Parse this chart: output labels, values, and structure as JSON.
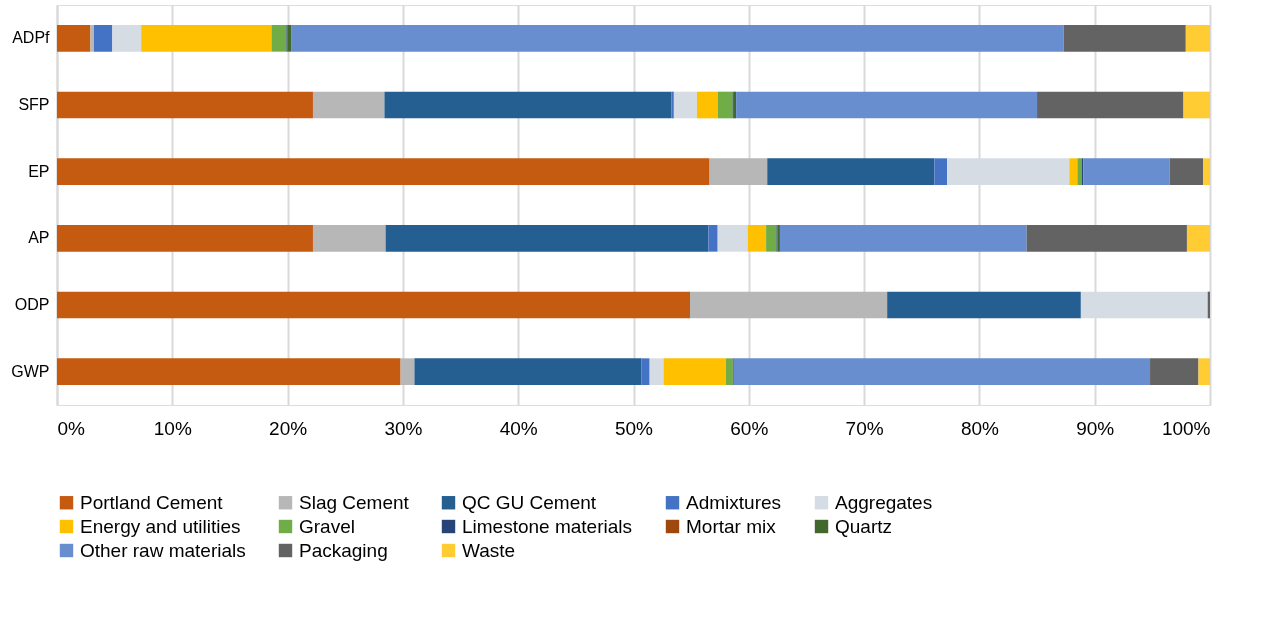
{
  "chart_data": {
    "type": "bar",
    "orientation": "horizontal",
    "stacked": true,
    "legend": "bottom",
    "grid": "x",
    "categories": [
      "ADPf",
      "SFP",
      "EP",
      "AP",
      "ODP",
      "GWP"
    ],
    "xlim": [
      0,
      100
    ],
    "xticks": [
      {
        "value": 0,
        "label": "0%"
      },
      {
        "value": 10,
        "label": "10%"
      },
      {
        "value": 20,
        "label": "20%"
      },
      {
        "value": 30,
        "label": "30%"
      },
      {
        "value": 40,
        "label": "40%"
      },
      {
        "value": 50,
        "label": "50%"
      },
      {
        "value": 60,
        "label": "60%"
      },
      {
        "value": 70,
        "label": "70%"
      },
      {
        "value": 80,
        "label": "80%"
      },
      {
        "value": 90,
        "label": "90%"
      },
      {
        "value": 100,
        "label": "100%"
      }
    ],
    "series": [
      {
        "name": "Portland Cement",
        "color": "#c55a11",
        "values": [
          2.9,
          22.2,
          56.6,
          22.2,
          54.9,
          29.8
        ]
      },
      {
        "name": "Slag Cement",
        "color": "#b7b7b7",
        "values": [
          0.3,
          6.2,
          5.0,
          6.3,
          17.1,
          1.2
        ]
      },
      {
        "name": "QC GU Cement",
        "color": "#255e91",
        "values": [
          0,
          24.9,
          14.5,
          28.0,
          16.8,
          19.7
        ]
      },
      {
        "name": "Admixtures",
        "color": "#4472c4",
        "values": [
          1.6,
          0.2,
          1.1,
          0.8,
          0,
          0.7
        ]
      },
      {
        "name": "Aggregates",
        "color": "#d6dce4",
        "values": [
          2.5,
          2.0,
          10.6,
          2.6,
          11.0,
          1.2
        ]
      },
      {
        "name": "Energy and utilities",
        "color": "#ffc000",
        "values": [
          11.3,
          1.8,
          0.7,
          1.6,
          0,
          5.4
        ]
      },
      {
        "name": "Gravel",
        "color": "#70ad47",
        "values": [
          1.3,
          1.3,
          0.4,
          0.9,
          0,
          0.6
        ]
      },
      {
        "name": "Limestone materials",
        "color": "#264478",
        "values": [
          0.1,
          0.1,
          0.1,
          0.1,
          0,
          0
        ]
      },
      {
        "name": "Mortar mix",
        "color": "#9e480e",
        "values": [
          0,
          0,
          0,
          0,
          0,
          0
        ]
      },
      {
        "name": "Quartz",
        "color": "#43682b",
        "values": [
          0.3,
          0.2,
          0,
          0.2,
          0,
          0.1
        ]
      },
      {
        "name": "Other raw materials",
        "color": "#698ed0",
        "values": [
          67.0,
          26.1,
          7.5,
          21.4,
          0,
          36.1
        ]
      },
      {
        "name": "Packaging",
        "color": "#636363",
        "values": [
          10.6,
          12.7,
          2.9,
          13.9,
          0.2,
          4.2
        ]
      },
      {
        "name": "Waste",
        "color": "#ffcc33",
        "values": [
          2.1,
          2.3,
          0.6,
          2.0,
          0,
          1.0
        ]
      }
    ]
  }
}
